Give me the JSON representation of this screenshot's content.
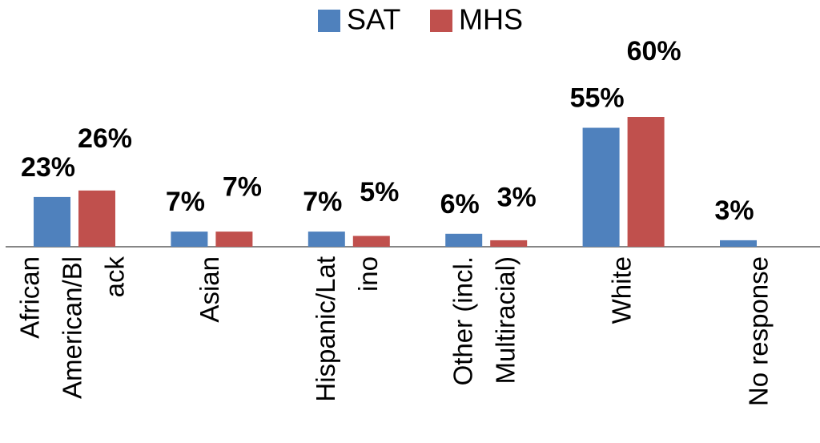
{
  "chart_data": {
    "type": "bar",
    "categories": [
      [
        "African",
        "American/Bl",
        "ack"
      ],
      [
        "Asian"
      ],
      [
        "Hispanic/Lat",
        "ino"
      ],
      [
        "Other (incl.",
        "Multiracial)"
      ],
      [
        "White"
      ],
      [
        "No response"
      ]
    ],
    "series": [
      {
        "name": "SAT",
        "color": "#4f81bd",
        "values": [
          23,
          7,
          7,
          6,
          55,
          3
        ],
        "value_labels": [
          "23%",
          "7%",
          "7%",
          "6%",
          "55%",
          "3%"
        ]
      },
      {
        "name": "MHS",
        "color": "#c0504d",
        "values": [
          26,
          7,
          5,
          3,
          60,
          null
        ],
        "value_labels": [
          "26%",
          "7%",
          "5%",
          "3%",
          "60%",
          null
        ]
      }
    ],
    "legend": "top"
  }
}
